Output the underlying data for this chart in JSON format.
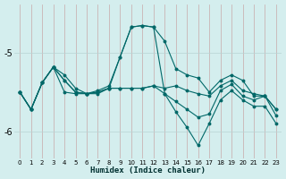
{
  "xlabel": "Humidex (Indice chaleur)",
  "bg_color": "#d4eeee",
  "line_color": "#006868",
  "vgrid_color": "#c8a8a8",
  "hgrid_color": "#b8d4d4",
  "x": [
    0,
    1,
    2,
    3,
    4,
    5,
    6,
    7,
    8,
    9,
    10,
    11,
    12,
    13,
    14,
    15,
    16,
    17,
    18,
    19,
    20,
    21,
    22,
    23
  ],
  "line1": [
    -5.5,
    -5.72,
    -5.38,
    -5.18,
    -5.28,
    -5.45,
    -5.52,
    -5.48,
    -5.42,
    -5.05,
    -4.67,
    -4.65,
    -4.67,
    -4.85,
    -5.2,
    -5.28,
    -5.32,
    -5.5,
    -5.35,
    -5.28,
    -5.35,
    -5.55,
    -5.55,
    -5.72
  ],
  "line2": [
    -5.5,
    -5.72,
    -5.38,
    -5.18,
    -5.35,
    -5.5,
    -5.52,
    -5.5,
    -5.45,
    -5.45,
    -5.45,
    -5.45,
    -5.42,
    -5.45,
    -5.42,
    -5.48,
    -5.52,
    -5.55,
    -5.42,
    -5.35,
    -5.48,
    -5.52,
    -5.55,
    -5.72
  ],
  "line3": [
    -5.5,
    -5.72,
    -5.38,
    -5.18,
    -5.35,
    -5.5,
    -5.52,
    -5.5,
    -5.45,
    -5.45,
    -5.45,
    -5.45,
    -5.42,
    -5.52,
    -5.62,
    -5.72,
    -5.82,
    -5.78,
    -5.48,
    -5.4,
    -5.55,
    -5.6,
    -5.55,
    -5.8
  ],
  "line4": [
    -5.5,
    -5.72,
    -5.38,
    -5.18,
    -5.5,
    -5.52,
    -5.52,
    -5.52,
    -5.45,
    -5.05,
    -4.67,
    -4.65,
    -4.67,
    -5.52,
    -5.75,
    -5.95,
    -6.18,
    -5.9,
    -5.6,
    -5.48,
    -5.6,
    -5.68,
    -5.68,
    -5.9
  ],
  "ylim": [
    -6.35,
    -4.38
  ],
  "yticks": [
    -6,
    -5
  ],
  "xlim": [
    -0.5,
    23.5
  ]
}
